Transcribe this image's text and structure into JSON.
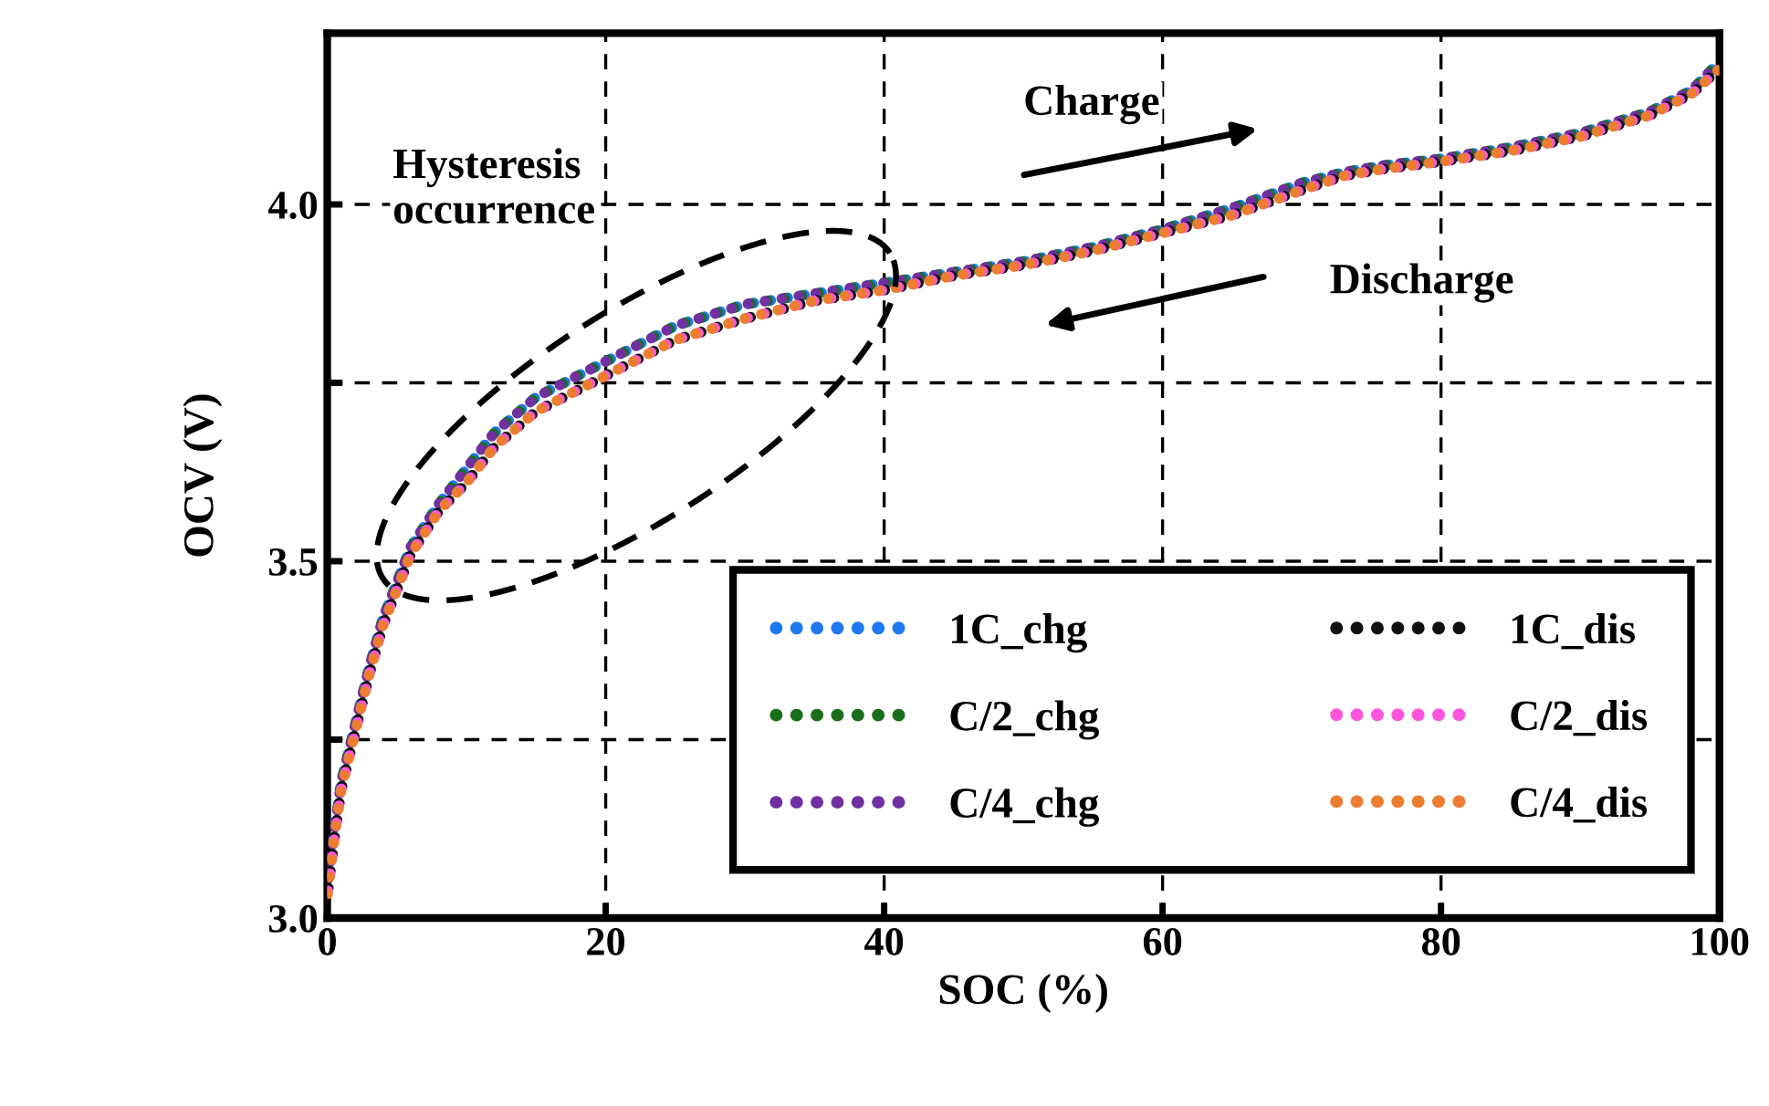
{
  "chart_data": {
    "type": "line",
    "xlabel": "SOC (%)",
    "ylabel": "OCV (V)",
    "x": [
      0,
      0.5,
      1,
      2,
      3,
      4,
      5,
      6,
      8,
      10,
      12,
      15,
      18,
      20,
      25,
      30,
      35,
      40,
      45,
      50,
      55,
      60,
      65,
      70,
      73,
      76,
      80,
      85,
      90,
      95,
      98,
      100
    ],
    "series": [
      {
        "name": "1C_chg",
        "color": "#1f78f0",
        "values": [
          3.04,
          3.12,
          3.19,
          3.27,
          3.35,
          3.42,
          3.47,
          3.52,
          3.58,
          3.63,
          3.68,
          3.73,
          3.76,
          3.78,
          3.83,
          3.86,
          3.875,
          3.89,
          3.905,
          3.92,
          3.94,
          3.965,
          3.995,
          4.03,
          4.045,
          4.055,
          4.064,
          4.08,
          4.1,
          4.13,
          4.16,
          4.2
        ]
      },
      {
        "name": "C/2_chg",
        "color": "#1a6e1a",
        "values": [
          3.04,
          3.12,
          3.19,
          3.27,
          3.35,
          3.42,
          3.47,
          3.52,
          3.58,
          3.63,
          3.68,
          3.73,
          3.76,
          3.78,
          3.83,
          3.86,
          3.875,
          3.89,
          3.905,
          3.92,
          3.94,
          3.965,
          3.995,
          4.03,
          4.045,
          4.055,
          4.064,
          4.08,
          4.1,
          4.13,
          4.16,
          4.2
        ]
      },
      {
        "name": "C/4_chg",
        "color": "#7030a0",
        "values": [
          3.04,
          3.12,
          3.19,
          3.27,
          3.35,
          3.42,
          3.47,
          3.52,
          3.58,
          3.63,
          3.68,
          3.73,
          3.76,
          3.78,
          3.83,
          3.86,
          3.875,
          3.89,
          3.905,
          3.92,
          3.94,
          3.965,
          3.995,
          4.03,
          4.045,
          4.055,
          4.064,
          4.08,
          4.1,
          4.13,
          4.16,
          4.2
        ]
      },
      {
        "name": "1C_dis",
        "color": "#111111",
        "values": [
          3.03,
          3.11,
          3.18,
          3.26,
          3.34,
          3.41,
          3.46,
          3.51,
          3.57,
          3.61,
          3.66,
          3.71,
          3.74,
          3.76,
          3.81,
          3.84,
          3.865,
          3.88,
          3.9,
          3.915,
          3.935,
          3.96,
          3.985,
          4.02,
          4.04,
          4.05,
          4.06,
          4.075,
          4.095,
          4.125,
          4.155,
          4.19
        ]
      },
      {
        "name": "C/2_dis",
        "color": "#ff55dd",
        "values": [
          3.03,
          3.11,
          3.18,
          3.26,
          3.34,
          3.41,
          3.46,
          3.51,
          3.57,
          3.61,
          3.66,
          3.71,
          3.74,
          3.76,
          3.81,
          3.84,
          3.865,
          3.88,
          3.9,
          3.915,
          3.935,
          3.96,
          3.985,
          4.02,
          4.04,
          4.05,
          4.06,
          4.075,
          4.095,
          4.125,
          4.155,
          4.19
        ]
      },
      {
        "name": "C/4_dis",
        "color": "#ed7d31",
        "values": [
          3.03,
          3.11,
          3.18,
          3.26,
          3.34,
          3.41,
          3.46,
          3.51,
          3.57,
          3.61,
          3.66,
          3.71,
          3.74,
          3.76,
          3.81,
          3.84,
          3.865,
          3.88,
          3.9,
          3.915,
          3.935,
          3.96,
          3.985,
          4.02,
          4.04,
          4.05,
          4.06,
          4.075,
          4.095,
          4.125,
          4.155,
          4.19
        ]
      }
    ],
    "xlim": [
      0,
      100
    ],
    "xticks": [
      0,
      20,
      40,
      60,
      80,
      100
    ],
    "ylim": [
      3.0,
      4.24
    ],
    "yticks": [
      {
        "value": 3.0,
        "label": "3.0"
      },
      {
        "value": 3.25,
        "label": null
      },
      {
        "value": 3.5,
        "label": "3.5"
      },
      {
        "value": 3.75,
        "label": null
      },
      {
        "value": 4.0,
        "label": "4.0"
      }
    ],
    "grid": true,
    "legend": "bottom right",
    "line_style": "dotted",
    "marker": "none",
    "annotations": [
      "Hysteresis\noccurrence",
      "Charge",
      "Discharge"
    ]
  }
}
